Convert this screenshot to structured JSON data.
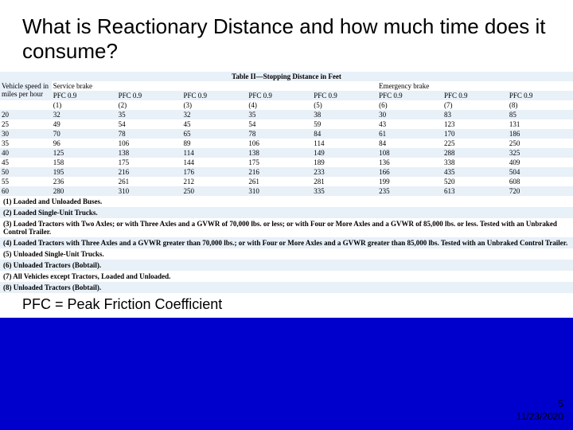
{
  "title": "What is Reactionary Distance and how much time does it consume?",
  "table": {
    "caption": "Table II—Stopping Distance in Feet",
    "header1": {
      "c0": "Vehicle speed in miles per hour",
      "c1": "Service brake",
      "c6": "Emergency brake"
    },
    "header2": {
      "c1": "PFC 0.9",
      "c2": "PFC 0.9",
      "c3": "PFC 0.9",
      "c4": "PFC 0.9",
      "c5": "PFC 0.9",
      "c6": "PFC 0.9",
      "c7": "PFC 0.9",
      "c8": "PFC 0.9"
    },
    "header3": {
      "c1": "(1)",
      "c2": "(2)",
      "c3": "(3)",
      "c4": "(4)",
      "c5": "(5)",
      "c6": "(6)",
      "c7": "(7)",
      "c8": "(8)"
    },
    "rows": [
      {
        "c0": "20",
        "c1": "32",
        "c2": "35",
        "c3": "32",
        "c4": "35",
        "c5": "38",
        "c6": "30",
        "c7": "83",
        "c8": "85"
      },
      {
        "c0": "25",
        "c1": "49",
        "c2": "54",
        "c3": "45",
        "c4": "54",
        "c5": "59",
        "c6": "43",
        "c7": "123",
        "c8": "131"
      },
      {
        "c0": "30",
        "c1": "70",
        "c2": "78",
        "c3": "65",
        "c4": "78",
        "c5": "84",
        "c6": "61",
        "c7": "170",
        "c8": "186"
      },
      {
        "c0": "35",
        "c1": "96",
        "c2": "106",
        "c3": "89",
        "c4": "106",
        "c5": "114",
        "c6": "84",
        "c7": "225",
        "c8": "250"
      },
      {
        "c0": "40",
        "c1": "125",
        "c2": "138",
        "c3": "114",
        "c4": "138",
        "c5": "149",
        "c6": "108",
        "c7": "288",
        "c8": "325"
      },
      {
        "c0": "45",
        "c1": "158",
        "c2": "175",
        "c3": "144",
        "c4": "175",
        "c5": "189",
        "c6": "136",
        "c7": "338",
        "c8": "409"
      },
      {
        "c0": "50",
        "c1": "195",
        "c2": "216",
        "c3": "176",
        "c4": "216",
        "c5": "233",
        "c6": "166",
        "c7": "435",
        "c8": "504"
      },
      {
        "c0": "55",
        "c1": "236",
        "c2": "261",
        "c3": "212",
        "c4": "261",
        "c5": "281",
        "c6": "199",
        "c7": "520",
        "c8": "608"
      },
      {
        "c0": "60",
        "c1": "280",
        "c2": "310",
        "c3": "250",
        "c4": "310",
        "c5": "335",
        "c6": "235",
        "c7": "613",
        "c8": "720"
      }
    ],
    "notes": [
      "(1) Loaded and Unloaded Buses.",
      "(2) Loaded Single-Unit Trucks.",
      "(3) Loaded Tractors with Two Axles; or with Three Axles and a GVWR of 70,000 lbs. or less; or with Four or More Axles and a GVWR of 85,000 lbs. or less. Tested with an Unbraked Control Trailer.",
      "(4) Loaded Tractors with Three Axles and a GVWR greater than 70,000 lbs.; or with Four or More Axles and a GVWR greater than 85,000 lbs. Tested with an Unbraked Control Trailer.",
      "(5) Unloaded Single-Unit Trucks.",
      "(6) Unloaded Tractors (Bobtail).",
      "(7) All Vehicles except Tractors, Loaded and Unloaded.",
      "(8) Unloaded Tractors (Bobtail)."
    ]
  },
  "footer": "PFC = Peak Friction Coefficient",
  "slide_number": "5",
  "slide_date": "11/23/2020",
  "colors": {
    "bg": "#0000cc",
    "row_light": "#e8f0f8",
    "row_white": "#ffffff"
  }
}
